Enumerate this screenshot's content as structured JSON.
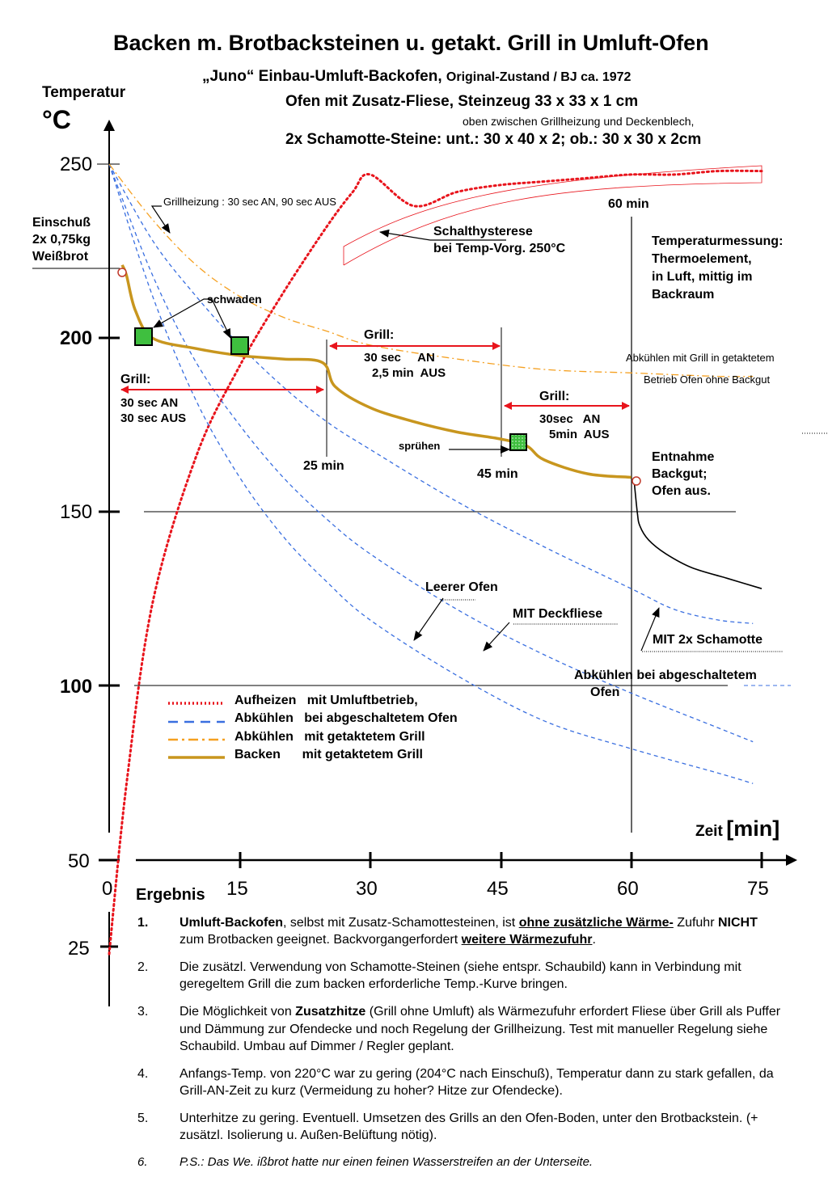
{
  "title": "Backen m. Brotbacksteinen u. getakt. Grill in Umluft-Ofen",
  "subtitle_main": "„Juno“ Einbau-Umluft-Backofen,",
  "subtitle_small": "Original-Zustand / BJ ca. 1972",
  "line3": "Ofen mit Zusatz-Fliese,  Steinzeug 33 x 33 x 1 cm",
  "line4": "oben zwischen Grillheizung und Deckenblech,",
  "line5": "2x Schamotte-Steine: unt.: 30 x 40 x 2; ob.: 30 x 30 x 2cm",
  "ylabel": "Temperatur",
  "yunit": "°C",
  "xlabel_word": "Zeit",
  "xlabel_unit": "[min]",
  "ann": {
    "einschuss": [
      "Einschuß",
      "2x 0,75kg",
      "Weißbrot"
    ],
    "grillheizung": "Grillheizung : 30 sec AN, 90 sec AUS",
    "schalthysterese": [
      "Schalthysterese",
      "bei Temp-Vorg. 250°C"
    ],
    "sixty": "60 min",
    "messung": [
      "Temperaturmessung:",
      "Thermoelement,",
      "in Luft, mittig im",
      "Backraum"
    ],
    "schwaden": "schwaden",
    "grill1": [
      "Grill:",
      "30 sec AN",
      "30 sec AUS"
    ],
    "grill2": [
      "Grill:",
      "30 sec     AN",
      "2,5 min  AUS"
    ],
    "grill3": [
      "Grill:",
      "30sec   AN",
      "5min  AUS"
    ],
    "abk_grill": [
      "Abkühlen  mit Grill in getaktetem",
      "Betrieb  Ofen ohne Backgut"
    ],
    "spruehen": "sprühen",
    "t25": "25 min",
    "t45": "45 min",
    "entnahme": [
      "Entnahme",
      "Backgut;",
      "Ofen aus."
    ],
    "leer": "Leerer Ofen",
    "deckfliese": "MIT Deckfliese",
    "schamotte": "MIT 2x Schamotte",
    "abk_aus": [
      "Abkühlen bei abgeschaltetem",
      "Ofen"
    ]
  },
  "legend": [
    {
      "name": "Aufheizen   mit Umluftbetrieb,",
      "color": "#e8141c",
      "dash": "dotted"
    },
    {
      "name": "Abkühlen   bei abgeschaltetem Ofen",
      "color": "#3a6fe0",
      "dash": "dashed"
    },
    {
      "name": "Abkühlen   mit getaktetem Grill",
      "color": "#f5a020",
      "dash": "dashdot"
    },
    {
      "name": "Backen      mit getaktetem Grill",
      "color": "#c8961e",
      "dash": "solid"
    }
  ],
  "chart_data": {
    "type": "line",
    "xlim": [
      0,
      75
    ],
    "x_ticks": [
      "0",
      "15",
      "30",
      "45",
      "60",
      "75"
    ],
    "y_ticks": [
      "250",
      "200",
      "150",
      "100",
      "50",
      "25"
    ],
    "series": [
      {
        "name": "Aufheizen   mit Umluftbetrieb,",
        "color": "#e8141c",
        "x": [
          0,
          2,
          5,
          10,
          15,
          20,
          25,
          28,
          30,
          35,
          40,
          45,
          50,
          55,
          60,
          65,
          70,
          75
        ],
        "y": [
          23,
          72,
          124,
          166,
          192,
          213,
          232,
          242,
          247,
          238,
          242,
          244,
          245,
          246,
          247,
          247,
          248,
          248
        ]
      },
      {
        "name": "Abkühlen   bei abgeschaltetem Ofen",
        "color": "#3a6fe0",
        "x": [
          0,
          5,
          10,
          15,
          20,
          25,
          30,
          40,
          50,
          60,
          70,
          74
        ],
        "y": [
          250,
          212,
          182,
          160,
          143,
          130,
          119,
          103,
          90,
          82,
          75,
          72
        ]
      },
      {
        "name": "Abkühlen   bei abgeschaltetem Ofen",
        "color": "#3a6fe0",
        "x": [
          0,
          5,
          10,
          15,
          20,
          25,
          30,
          40,
          50,
          60,
          70,
          74
        ],
        "y": [
          250,
          218,
          193,
          175,
          160,
          148,
          138,
          122,
          109,
          98,
          88,
          84
        ]
      },
      {
        "name": "Abkühlen   bei abgeschaltetem Ofen",
        "color": "#3a6fe0",
        "x": [
          0,
          5,
          10,
          15,
          20,
          25,
          30,
          40,
          50,
          60,
          65,
          70,
          74
        ],
        "y": [
          250,
          228,
          212,
          198,
          186,
          176,
          168,
          153,
          140,
          128,
          122,
          119,
          118
        ]
      },
      {
        "name": "Abkühlen   mit getaktetem Grill",
        "color": "#f5a020",
        "x": [
          0,
          5,
          10,
          15,
          20,
          25,
          30,
          40,
          50,
          60,
          70,
          74
        ],
        "y": [
          250,
          234,
          221,
          212,
          206,
          202,
          198,
          194,
          191,
          190,
          189,
          189
        ]
      },
      {
        "name": "Backen      mit getaktetem Grill",
        "color": "#c8961e",
        "x": [
          1.5,
          2,
          3,
          5,
          10,
          15,
          20,
          24.5,
          26,
          30,
          35,
          40,
          45,
          48,
          50,
          55,
          60
        ],
        "y": [
          221,
          218,
          208,
          200,
          197,
          195,
          194,
          193,
          186,
          180,
          176,
          173,
          171,
          169,
          165,
          161,
          160
        ]
      },
      {
        "name": "",
        "color": "#000000",
        "x": [
          60.3,
          60.7,
          61,
          62,
          64,
          67,
          71,
          75
        ],
        "y": [
          160,
          150,
          146,
          142,
          138,
          134,
          131,
          128
        ]
      }
    ]
  },
  "results": {
    "heading": "Ergebnis",
    "items": [
      {
        "num": "1.",
        "parts": [
          {
            "t": "Umluft-Backofen",
            "s": "b"
          },
          {
            "t": ", selbst mit Zusatz-Schamottesteinen, ist ",
            "s": ""
          },
          {
            "t": "ohne zusätzliche Wärme-",
            "s": "bu"
          },
          {
            "t": " Zufuhr ",
            "s": ""
          },
          {
            "t": "NICHT",
            "s": "b"
          },
          {
            "t": " zum Brotbacken geeignet. Backvorgangerfordert ",
            "s": ""
          },
          {
            "t": "weitere Wärmezufuhr",
            "s": "bu"
          },
          {
            "t": ".",
            "s": ""
          }
        ]
      },
      {
        "num": "2.",
        "parts": [
          {
            "t": "Die zusätzl. Verwendung von Schamotte-Steinen (siehe entspr. Schaubild) kann in Verbindung mit geregeltem Grill die zum backen erforderliche Temp.-Kurve bringen.",
            "s": ""
          }
        ]
      },
      {
        "num": "3.",
        "parts": [
          {
            "t": "Die Möglichkeit von ",
            "s": ""
          },
          {
            "t": "Zusatzhitze",
            "s": "b"
          },
          {
            "t": " (Grill ohne Umluft) als Wärmezufuhr erfordert Fliese über Grill als Puffer und Dämmung zur Ofendecke und noch Regelung der Grillheizung. Test mit manueller Regelung siehe Schaubild. Umbau auf Dimmer / Regler geplant.",
            "s": ""
          }
        ]
      },
      {
        "num": "4.",
        "parts": [
          {
            "t": "Anfangs-Temp. von 220°C war zu gering (204°C nach Einschuß), Temperatur dann zu stark gefallen, da Grill-AN-Zeit zu kurz (Vermeidung zu hoher? Hitze zur Ofendecke).",
            "s": ""
          }
        ]
      },
      {
        "num": "5.",
        "parts": [
          {
            "t": "Unterhitze zu gering. Eventuell. Umsetzen des Grills an den Ofen-Boden, unter den Brotbackstein. (+ zusätzl. Isolierung u. Außen-Belüftung nötig).",
            "s": ""
          }
        ]
      },
      {
        "num": "6.",
        "italic": true,
        "parts": [
          {
            "t": "P.S.: Das We. ißbrot hatte nur einen feinen Wasserstreifen an der Unterseite.",
            "s": ""
          }
        ]
      }
    ]
  }
}
